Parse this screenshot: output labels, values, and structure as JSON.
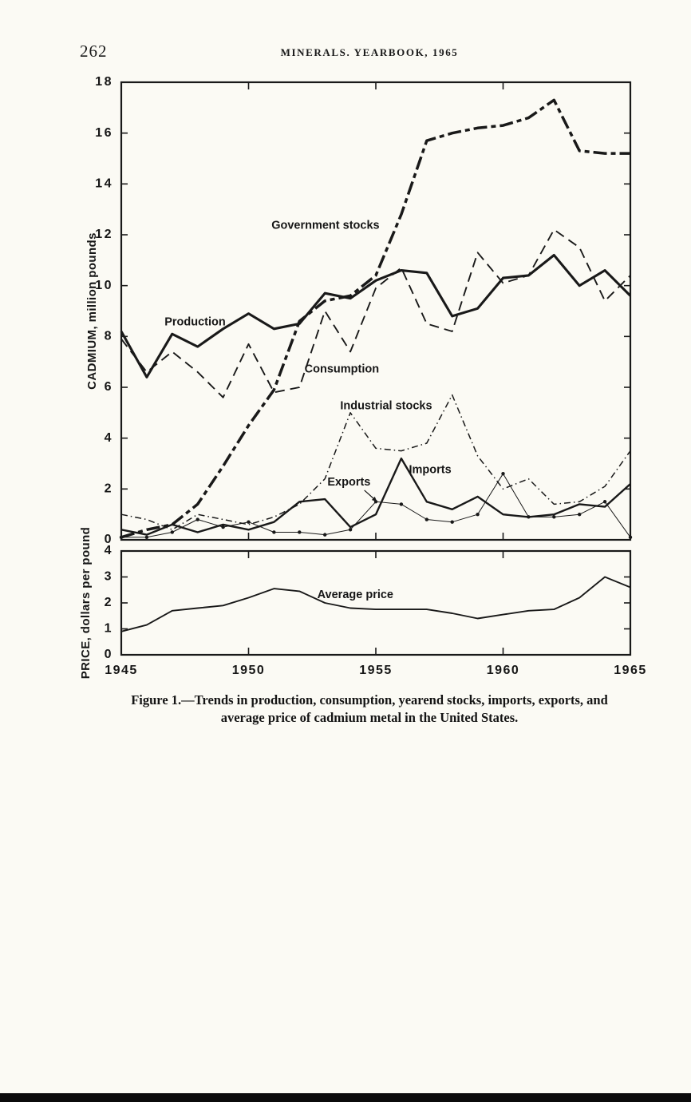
{
  "page": {
    "number": "262",
    "running_title": "MINERALS. YEARBOOK, 1965",
    "caption_line1": "Figure 1.—Trends in production, consumption, yearend stocks, imports, exports, and",
    "caption_line2": "average price of cadmium metal in the United States."
  },
  "chart_data": [
    {
      "type": "line",
      "title": "",
      "xlabel": "",
      "ylabel": "CADMIUM, million pounds",
      "grid": false,
      "legend": "inline-labels",
      "x": [
        1945,
        1946,
        1947,
        1948,
        1949,
        1950,
        1951,
        1952,
        1953,
        1954,
        1955,
        1956,
        1957,
        1958,
        1959,
        1960,
        1961,
        1962,
        1963,
        1964,
        1965
      ],
      "xticks": [
        1945,
        1950,
        1955,
        1960,
        1965
      ],
      "ylim": [
        0,
        18
      ],
      "yticks": [
        0,
        2,
        4,
        6,
        8,
        10,
        12,
        14,
        16,
        18
      ],
      "series": [
        {
          "name": "Government stocks",
          "values": [
            0.1,
            0.4,
            0.6,
            1.4,
            2.9,
            4.5,
            5.9,
            8.6,
            9.4,
            9.6,
            10.4,
            12.8,
            15.7,
            16.0,
            16.2,
            16.3,
            16.6,
            17.3,
            15.3,
            15.2,
            15.2
          ]
        },
        {
          "name": "Production",
          "values": [
            8.2,
            6.4,
            8.1,
            7.6,
            8.3,
            8.9,
            8.3,
            8.5,
            9.7,
            9.5,
            10.2,
            10.6,
            10.5,
            8.8,
            9.1,
            10.3,
            10.4,
            11.2,
            10.0,
            10.6,
            9.6
          ]
        },
        {
          "name": "Consumption",
          "values": [
            7.9,
            6.6,
            7.4,
            6.6,
            5.6,
            7.7,
            5.8,
            6.0,
            9.0,
            7.4,
            9.9,
            10.7,
            8.5,
            8.2,
            11.3,
            10.1,
            10.4,
            12.2,
            11.5,
            9.4,
            10.4
          ]
        },
        {
          "name": "Industrial stocks",
          "values": [
            1.0,
            0.8,
            0.4,
            1.0,
            0.8,
            0.6,
            0.9,
            1.4,
            2.4,
            5.0,
            3.6,
            3.5,
            3.8,
            5.7,
            3.3,
            2.0,
            2.4,
            1.4,
            1.5,
            2.1,
            3.5
          ]
        },
        {
          "name": "Imports",
          "values": [
            0.4,
            0.2,
            0.6,
            0.3,
            0.6,
            0.4,
            0.7,
            1.5,
            1.6,
            0.5,
            1.0,
            3.2,
            1.5,
            1.2,
            1.7,
            1.0,
            0.9,
            1.0,
            1.4,
            1.3,
            2.2
          ]
        },
        {
          "name": "Exports",
          "values": [
            0.1,
            0.1,
            0.3,
            0.8,
            0.5,
            0.7,
            0.3,
            0.3,
            0.2,
            0.4,
            1.5,
            1.4,
            0.8,
            0.7,
            1.0,
            2.6,
            0.9,
            0.9,
            1.0,
            1.5,
            0.1
          ]
        }
      ],
      "labels": [
        {
          "text": "Government stocks",
          "year": 1950.9,
          "value": 12.35
        },
        {
          "text": "Production",
          "year": 1946.7,
          "value": 8.55
        },
        {
          "text": "Consumption",
          "year": 1952.2,
          "value": 6.7
        },
        {
          "text": "Industrial stocks",
          "year": 1953.6,
          "value": 5.25
        },
        {
          "text": "Exports",
          "year": 1953.1,
          "value": 2.25,
          "arrow": {
            "from": {
              "year": 1954.55,
              "value": 1.95
            },
            "to": {
              "year": 1955.05,
              "value": 1.5
            }
          }
        },
        {
          "text": "Imports",
          "year": 1956.3,
          "value": 2.75
        }
      ]
    },
    {
      "type": "line",
      "title": "",
      "xlabel": "",
      "ylabel": "PRICE, dollars per pound",
      "grid": false,
      "legend": "inline-labels",
      "x": [
        1945,
        1946,
        1947,
        1948,
        1949,
        1950,
        1951,
        1952,
        1953,
        1954,
        1955,
        1956,
        1957,
        1958,
        1959,
        1960,
        1961,
        1962,
        1963,
        1964,
        1965
      ],
      "xticks": [
        1945,
        1950,
        1955,
        1960,
        1965
      ],
      "ylim": [
        0,
        4
      ],
      "yticks": [
        0,
        1,
        2,
        3,
        4
      ],
      "series": [
        {
          "name": "Average price",
          "values": [
            0.9,
            1.15,
            1.7,
            1.8,
            1.9,
            2.2,
            2.55,
            2.45,
            2.0,
            1.8,
            1.75,
            1.75,
            1.75,
            1.6,
            1.4,
            1.55,
            1.7,
            1.75,
            2.2,
            3.0,
            2.6
          ]
        }
      ],
      "labels": [
        {
          "text": "Average price",
          "year": 1952.7,
          "value": 2.3
        }
      ]
    }
  ],
  "style": {
    "ink_color": "#191919",
    "paper_color": "#fbfaf4"
  }
}
